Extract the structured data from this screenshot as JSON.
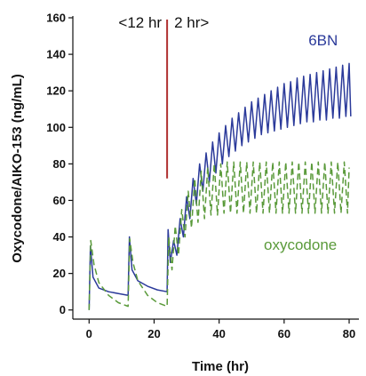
{
  "chart_data": {
    "type": "line",
    "title": "",
    "xlabel": "Time (hr)",
    "ylabel": "Oxycodone/AIKO-153 (ng/mL)",
    "xlim": [
      -5,
      83
    ],
    "ylim": [
      -5,
      160
    ],
    "xticks": [
      0,
      20,
      40,
      60,
      80
    ],
    "yticks": [
      0,
      20,
      40,
      60,
      80,
      100,
      120,
      140,
      160
    ],
    "dose_switch": {
      "time": 24,
      "line_y_range": [
        72,
        160
      ],
      "label_before": "<12 hr",
      "label_after": "2 hr>",
      "color": "#b03030"
    },
    "series": [
      {
        "name": "6BN",
        "style": "solid",
        "color": "#2b3a9a",
        "points": [
          [
            0,
            0
          ],
          [
            0.4,
            35
          ],
          [
            1.2,
            18
          ],
          [
            3,
            12
          ],
          [
            6,
            10
          ],
          [
            9,
            9
          ],
          [
            12,
            8
          ],
          [
            12.4,
            40
          ],
          [
            13.2,
            22
          ],
          [
            15,
            16
          ],
          [
            18,
            13
          ],
          [
            21,
            11
          ],
          [
            24,
            10
          ],
          [
            24.3,
            44
          ],
          [
            25,
            26
          ],
          [
            26,
            38
          ],
          [
            27,
            30
          ],
          [
            28,
            50
          ],
          [
            29,
            40
          ],
          [
            30,
            62
          ],
          [
            31,
            50
          ],
          [
            32,
            72
          ],
          [
            33,
            58
          ],
          [
            34,
            80
          ],
          [
            35,
            65
          ],
          [
            36,
            86
          ],
          [
            37,
            70
          ],
          [
            38,
            92
          ],
          [
            39,
            75
          ],
          [
            40,
            97
          ],
          [
            41,
            80
          ],
          [
            42,
            101
          ],
          [
            43,
            84
          ],
          [
            44,
            105
          ],
          [
            45,
            87
          ],
          [
            46,
            108
          ],
          [
            47,
            90
          ],
          [
            48,
            111
          ],
          [
            49,
            92
          ],
          [
            50,
            114
          ],
          [
            51,
            94
          ],
          [
            52,
            116
          ],
          [
            53,
            96
          ],
          [
            54,
            118
          ],
          [
            55,
            97
          ],
          [
            56,
            120
          ],
          [
            57,
            98
          ],
          [
            58,
            122
          ],
          [
            59,
            99
          ],
          [
            60,
            124
          ],
          [
            61,
            100
          ],
          [
            62,
            125
          ],
          [
            63,
            101
          ],
          [
            64,
            127
          ],
          [
            65,
            102
          ],
          [
            66,
            128
          ],
          [
            67,
            103
          ],
          [
            68,
            129
          ],
          [
            69,
            103
          ],
          [
            70,
            130
          ],
          [
            71,
            104
          ],
          [
            72,
            131
          ],
          [
            73,
            104
          ],
          [
            74,
            132
          ],
          [
            75,
            105
          ],
          [
            76,
            133
          ],
          [
            77,
            105
          ],
          [
            78,
            134
          ],
          [
            79,
            106
          ],
          [
            80,
            135
          ],
          [
            80.5,
            106
          ]
        ]
      },
      {
        "name": "oxycodone",
        "style": "dashed",
        "color": "#5a9a3a",
        "points": [
          [
            0,
            0
          ],
          [
            0.5,
            38
          ],
          [
            1.5,
            25
          ],
          [
            3,
            15
          ],
          [
            6,
            8
          ],
          [
            9,
            4
          ],
          [
            12,
            2
          ],
          [
            12.5,
            39
          ],
          [
            13.5,
            26
          ],
          [
            15,
            16
          ],
          [
            18,
            8
          ],
          [
            21,
            4
          ],
          [
            24,
            2
          ],
          [
            24.5,
            40
          ],
          [
            25.5,
            22
          ],
          [
            26.5,
            46
          ],
          [
            27.5,
            30
          ],
          [
            28.5,
            55
          ],
          [
            29.5,
            40
          ],
          [
            30.5,
            65
          ],
          [
            31.5,
            45
          ],
          [
            32.5,
            72
          ],
          [
            33.5,
            48
          ],
          [
            34.5,
            76
          ],
          [
            35.5,
            50
          ],
          [
            36.5,
            78
          ],
          [
            37.5,
            52
          ],
          [
            38.5,
            80
          ],
          [
            39.5,
            52
          ],
          [
            40.5,
            80
          ],
          [
            41.5,
            53
          ],
          [
            42.5,
            81
          ],
          [
            43.5,
            53
          ],
          [
            44.5,
            81
          ],
          [
            45.5,
            53
          ],
          [
            46.5,
            81
          ],
          [
            47.5,
            53
          ],
          [
            48.5,
            81
          ],
          [
            49.5,
            53
          ],
          [
            50.5,
            81
          ],
          [
            51.5,
            53
          ],
          [
            52.5,
            81
          ],
          [
            53.5,
            53
          ],
          [
            54.5,
            81
          ],
          [
            55.5,
            53
          ],
          [
            56.5,
            81
          ],
          [
            57.5,
            53
          ],
          [
            58.5,
            81
          ],
          [
            59.5,
            53
          ],
          [
            60.5,
            81
          ],
          [
            61.5,
            53
          ],
          [
            62.5,
            81
          ],
          [
            63.5,
            53
          ],
          [
            64.5,
            81
          ],
          [
            65.5,
            53
          ],
          [
            66.5,
            81
          ],
          [
            67.5,
            53
          ],
          [
            68.5,
            81
          ],
          [
            69.5,
            53
          ],
          [
            70.5,
            81
          ],
          [
            71.5,
            53
          ],
          [
            72.5,
            81
          ],
          [
            73.5,
            53
          ],
          [
            74.5,
            81
          ],
          [
            75.5,
            53
          ],
          [
            76.5,
            81
          ],
          [
            77.5,
            53
          ],
          [
            78.5,
            81
          ],
          [
            79.5,
            53
          ],
          [
            80,
            78
          ]
        ]
      }
    ],
    "annotations": [
      {
        "text": "6BN",
        "x": 72,
        "y": 145,
        "color": "#2b3a9a"
      },
      {
        "text": "oxycodone",
        "x": 65,
        "y": 33,
        "color": "#5a9a3a"
      }
    ],
    "grid": false,
    "legend": "none"
  }
}
